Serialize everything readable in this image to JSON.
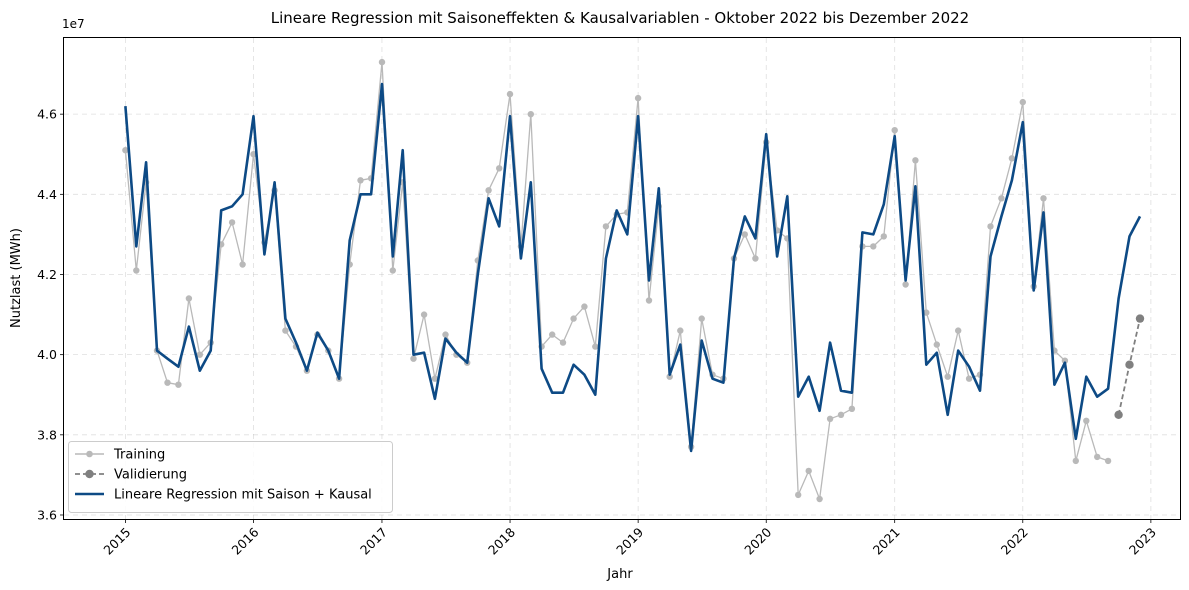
{
  "chart_data": {
    "type": "line",
    "title": "Lineare Regression mit Saisoneffekten & Kausalvariablen - Oktober 2022 bis Dezember 2022",
    "xlabel": "Jahr",
    "ylabel": "Nutzlast (MWh)",
    "y_offset_label": "1e7",
    "xlim": [
      "2014-07-10",
      "2023-03-25"
    ],
    "ylim": [
      35.9,
      47.9
    ],
    "y_unit_multiplier": 1000000,
    "x_ticks": [
      "2015",
      "2016",
      "2017",
      "2018",
      "2019",
      "2020",
      "2021",
      "2022",
      "2023"
    ],
    "y_ticks": [
      "3.6",
      "3.8",
      "4.0",
      "4.2",
      "4.4",
      "4.6"
    ],
    "grid": true,
    "legend_position": "lower-left",
    "colors": {
      "training": "#b9b9b9",
      "validation": "#808080",
      "model": "#0d4a85"
    },
    "series": [
      {
        "name": "Training",
        "start": "2015-01",
        "values": [
          45.1,
          42.1,
          44.3,
          40.1,
          39.3,
          39.25,
          41.4,
          40.0,
          40.3,
          42.75,
          43.3,
          42.25,
          45.0,
          42.8,
          44.1,
          40.6,
          40.2,
          39.6,
          40.5,
          40.1,
          39.4,
          42.25,
          44.35,
          44.4,
          47.3,
          42.1,
          44.3,
          39.9,
          41.0,
          39.4,
          40.5,
          40.0,
          39.8,
          42.35,
          44.1,
          44.65,
          46.5,
          42.7,
          46.0,
          40.2,
          40.5,
          40.3,
          40.9,
          41.2,
          40.2,
          43.2,
          43.5,
          43.55,
          46.4,
          41.35,
          43.7,
          39.45,
          40.6,
          37.7,
          40.9,
          39.5,
          39.4,
          42.4,
          43.0,
          42.4,
          45.3,
          43.1,
          42.9,
          36.5,
          37.1,
          36.4,
          38.4,
          38.5,
          38.65,
          42.7,
          42.7,
          42.95,
          45.6,
          41.75,
          44.85,
          41.05,
          40.25,
          39.45,
          40.6,
          39.4,
          39.5,
          43.2,
          43.9,
          44.9,
          46.3,
          41.7,
          43.9,
          40.1,
          39.85,
          37.35,
          38.35,
          37.45,
          37.35
        ]
      },
      {
        "name": "Validierung",
        "start": "2022-10",
        "values": [
          38.5,
          39.75,
          40.9
        ]
      },
      {
        "name": "Lineare Regression mit Saison + Kausal",
        "start": "2015-01",
        "values": [
          46.2,
          42.7,
          44.8,
          40.1,
          39.9,
          39.7,
          40.7,
          39.6,
          40.1,
          43.6,
          43.7,
          44.0,
          45.95,
          42.5,
          44.3,
          40.9,
          40.3,
          39.6,
          40.55,
          40.1,
          39.4,
          42.85,
          44.0,
          44.0,
          46.75,
          42.45,
          45.1,
          40.0,
          40.05,
          38.9,
          40.4,
          40.05,
          39.8,
          42.0,
          43.9,
          43.2,
          45.95,
          42.4,
          44.3,
          39.65,
          39.05,
          39.05,
          39.75,
          39.5,
          39.0,
          42.4,
          43.6,
          43.0,
          45.95,
          41.85,
          44.15,
          39.5,
          40.25,
          37.6,
          40.35,
          39.4,
          39.3,
          42.4,
          43.45,
          42.9,
          45.5,
          42.45,
          43.95,
          38.95,
          39.45,
          38.6,
          40.3,
          39.1,
          39.05,
          43.05,
          43.0,
          43.75,
          45.45,
          41.85,
          44.2,
          39.75,
          40.05,
          38.5,
          40.1,
          39.7,
          39.1,
          42.45,
          43.45,
          44.35,
          45.8,
          41.6,
          43.55,
          39.25,
          39.8,
          37.9,
          39.45,
          38.95,
          39.15,
          41.4,
          42.95,
          43.45
        ]
      }
    ]
  }
}
